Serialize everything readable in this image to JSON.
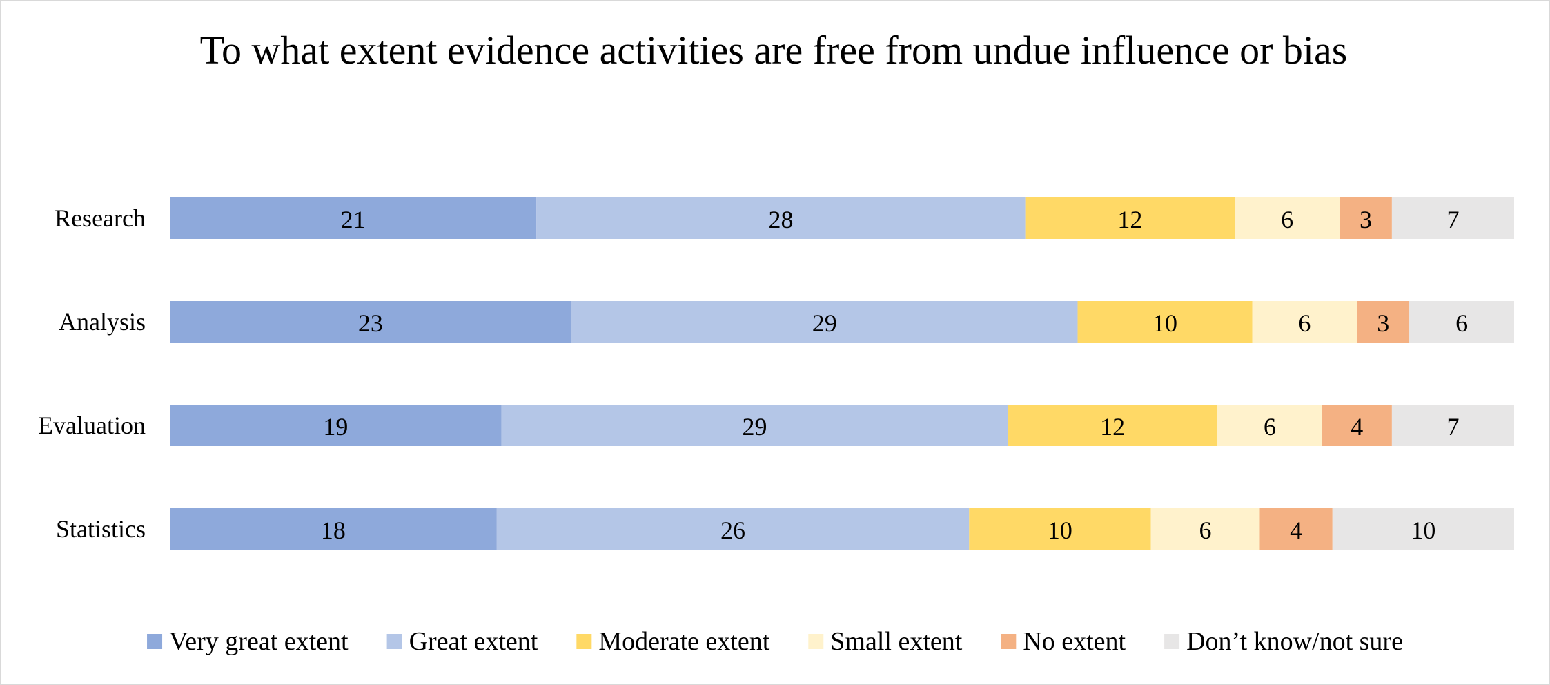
{
  "chart_data": {
    "type": "bar",
    "orientation": "horizontal",
    "stacked": "percent",
    "title": "To what extent evidence activities are free from undue influence or bias",
    "categories": [
      "Research",
      "Analysis",
      "Evaluation",
      "Statistics"
    ],
    "series": [
      {
        "name": "Very great extent",
        "color": "#8EA9DB",
        "values": [
          21,
          23,
          19,
          18
        ]
      },
      {
        "name": "Great extent",
        "color": "#B4C6E7",
        "values": [
          28,
          29,
          29,
          26
        ]
      },
      {
        "name": "Moderate extent",
        "color": "#FFD966",
        "values": [
          12,
          10,
          12,
          10
        ]
      },
      {
        "name": "Small extent",
        "color": "#FFF2CC",
        "values": [
          6,
          6,
          6,
          6
        ]
      },
      {
        "name": "No extent",
        "color": "#F4B183",
        "values": [
          3,
          3,
          4,
          4
        ]
      },
      {
        "name": "Don’t know/not sure",
        "color": "#E7E6E6",
        "values": [
          7,
          6,
          7,
          10
        ]
      }
    ],
    "data_labels": true,
    "grid": false,
    "legend": "bottom"
  }
}
